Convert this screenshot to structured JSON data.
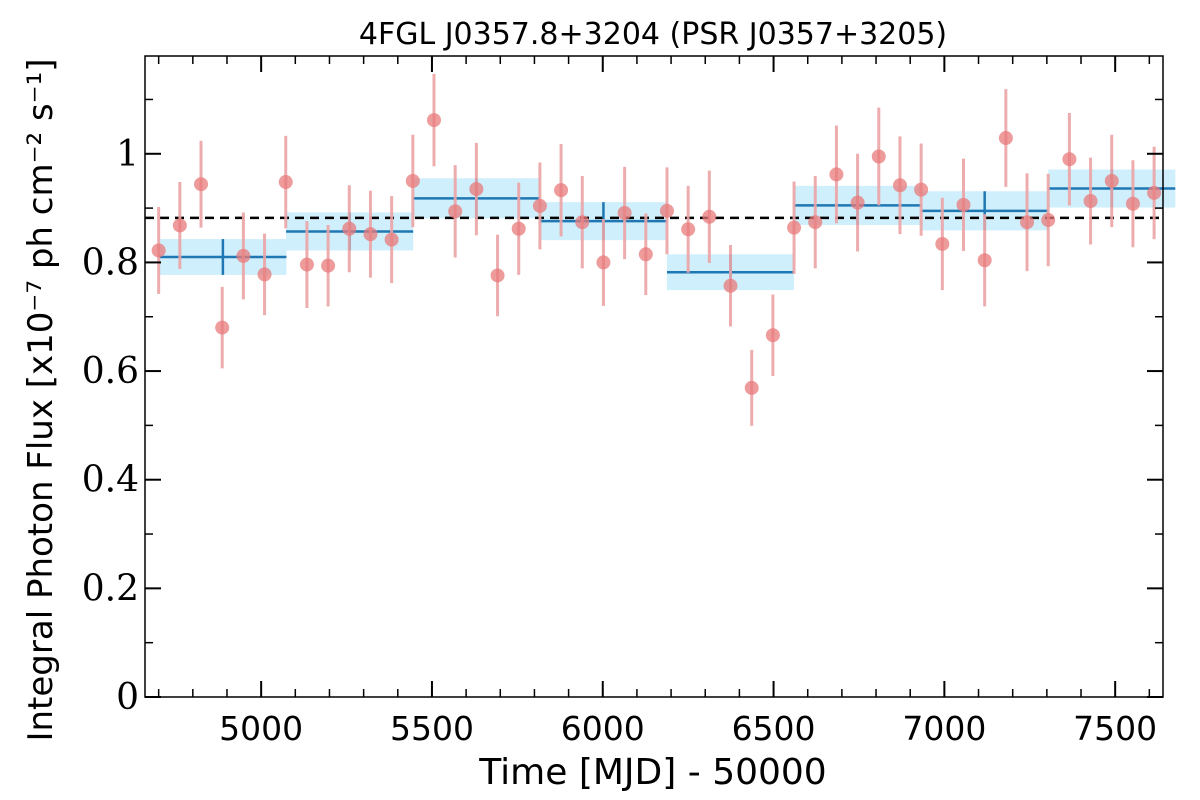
{
  "chart_data": {
    "type": "scatter",
    "title": "4FGL J0357.8+3204 (PSR J0357+3205)",
    "xlabel": "Time [MJD] - 50000",
    "ylabel": "Integral Photon Flux [x10⁻⁷ ph cm⁻² s⁻¹]",
    "xlim": [
      4660,
      7640
    ],
    "ylim": [
      0,
      1.18
    ],
    "xticks": [
      5000,
      5500,
      6000,
      6500,
      7000,
      7500
    ],
    "yticks": [
      0,
      0.2,
      0.4,
      0.6,
      0.8,
      1.0
    ],
    "ytick_labels": [
      "0",
      "0.2",
      "0.4",
      "0.6",
      "0.8",
      "1"
    ],
    "mean_flux": 0.882,
    "colors": {
      "points": "#e8797b",
      "errorbars": "#eba3a4",
      "bins": "#1f77b4",
      "bin_band": "#cfeffc",
      "mean_line": "#000000"
    },
    "series": [
      {
        "name": "",
        "style": "points",
        "x": [
          4700,
          4762,
          4824,
          4886,
          4948,
          5010,
          5072,
          5134,
          5196,
          5258,
          5320,
          5382,
          5444,
          5506,
          5568,
          5630,
          5692,
          5754,
          5816,
          5878,
          5940,
          6002,
          6064,
          6126,
          6188,
          6250,
          6312,
          6374,
          6436,
          6498,
          6560,
          6622,
          6684,
          6746,
          6808,
          6870,
          6932,
          6994,
          7056,
          7118,
          7180,
          7242,
          7304,
          7366,
          7428,
          7490,
          7552,
          7614
        ],
        "y": [
          0.822,
          0.868,
          0.944,
          0.68,
          0.812,
          0.778,
          0.948,
          0.796,
          0.794,
          0.862,
          0.852,
          0.842,
          0.95,
          1.062,
          0.894,
          0.935,
          0.776,
          0.862,
          0.904,
          0.933,
          0.874,
          0.8,
          0.891,
          0.815,
          0.895,
          0.861,
          0.884,
          0.757,
          0.569,
          0.666,
          0.864,
          0.874,
          0.962,
          0.91,
          0.995,
          0.942,
          0.934,
          0.834,
          0.906,
          0.804,
          1.029,
          0.874,
          0.878,
          0.99,
          0.913,
          0.95,
          0.908,
          0.928
        ],
        "yerr": [
          0.08,
          0.08,
          0.08,
          0.075,
          0.08,
          0.075,
          0.085,
          0.08,
          0.075,
          0.08,
          0.08,
          0.08,
          0.085,
          0.085,
          0.085,
          0.085,
          0.075,
          0.085,
          0.08,
          0.085,
          0.085,
          0.08,
          0.085,
          0.075,
          0.08,
          0.08,
          0.085,
          0.075,
          0.07,
          0.075,
          0.085,
          0.085,
          0.09,
          0.09,
          0.09,
          0.09,
          0.085,
          0.085,
          0.085,
          0.085,
          0.09,
          0.09,
          0.085,
          0.085,
          0.08,
          0.085,
          0.08,
          0.085
        ]
      },
      {
        "name": "",
        "style": "binned",
        "x": [
          4888,
          5259,
          5630,
          6002,
          6374,
          6746,
          7118,
          7490
        ],
        "xerr": [
          186,
          186,
          186,
          186,
          186,
          186,
          186,
          186
        ],
        "y": [
          0.81,
          0.857,
          0.918,
          0.876,
          0.782,
          0.905,
          0.895,
          0.936
        ],
        "yerr": [
          0.033,
          0.035,
          0.037,
          0.035,
          0.033,
          0.036,
          0.036,
          0.035
        ]
      }
    ]
  }
}
